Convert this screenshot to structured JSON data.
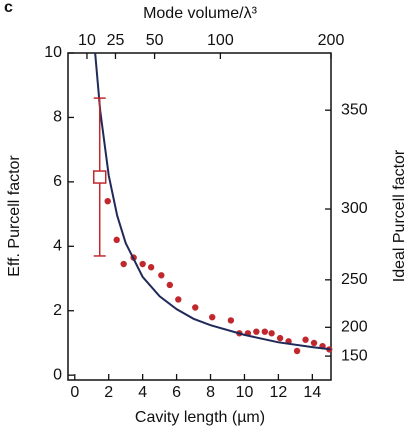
{
  "chart_data": {
    "type": "scatter",
    "panel_label": "c",
    "xlabel": "Cavity length (µm)",
    "ylabel": "Eff. Purcell factor",
    "x2label": "Mode volume/λ³",
    "y2label": "Ideal Purcell factor",
    "xlim": [
      -0.4,
      15.1
    ],
    "ylim": [
      -0.15,
      10
    ],
    "xticks": [
      0,
      2,
      4,
      6,
      8,
      10,
      12,
      14
    ],
    "yticks": [
      0,
      2,
      4,
      6,
      8,
      10
    ],
    "x2lim": [
      2.4,
      200
    ],
    "x2scale": "power",
    "x2exponent": 0.75,
    "x2ticks": [
      10,
      25,
      50,
      100,
      200
    ],
    "y2lim": [
      -77.5,
      373.4
    ],
    "y2scale": "power",
    "y2exponent": 3,
    "y2ticks": [
      150,
      200,
      250,
      300,
      350
    ],
    "series": [
      {
        "type": "scatter",
        "color": "#c0282e",
        "x": [
          1.94,
          2.47,
          2.88,
          3.47,
          4.0,
          4.5,
          5.1,
          5.6,
          6.1,
          7.1,
          8.1,
          9.2,
          9.7,
          10.2,
          10.7,
          11.2,
          11.6,
          12.1,
          12.6,
          13.1,
          13.6,
          14.1,
          14.6,
          15.0
        ],
        "values": [
          5.4,
          4.2,
          3.45,
          3.65,
          3.45,
          3.35,
          3.1,
          2.8,
          2.35,
          2.1,
          1.8,
          1.7,
          1.3,
          1.3,
          1.35,
          1.35,
          1.3,
          1.15,
          1.05,
          0.75,
          1.1,
          1.0,
          0.9,
          0.8
        ]
      },
      {
        "type": "line",
        "color": "#1f2a5a",
        "x": [
          1.2,
          1.5,
          2,
          2.5,
          3,
          4,
          5,
          6,
          7,
          8,
          10,
          12,
          14,
          15.1
        ],
        "values": [
          10,
          8.2,
          6.2,
          4.95,
          4.1,
          3.05,
          2.45,
          2.05,
          1.75,
          1.55,
          1.25,
          1.02,
          0.87,
          0.8
        ]
      },
      {
        "type": "errorbar",
        "color": "#c0282e",
        "x": [
          1.47
        ],
        "values": [
          6.15
        ],
        "errors": [
          2.45
        ]
      }
    ]
  }
}
